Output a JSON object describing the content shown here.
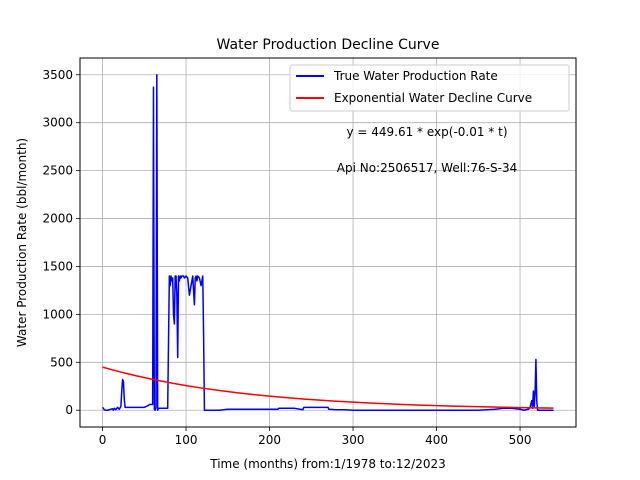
{
  "chart_data": {
    "type": "line",
    "title": "Water Production Decline Curve",
    "xlabel": "Time (months) from:1/1978 to:12/2023",
    "ylabel": "Water Production Rate (bbl/month)",
    "xlim": [
      -27,
      567
    ],
    "ylim": [
      -175,
      3675
    ],
    "xticks": [
      0,
      100,
      200,
      300,
      400,
      500
    ],
    "yticks": [
      0,
      500,
      1000,
      1500,
      2000,
      2500,
      3000,
      3500
    ],
    "grid": true,
    "legend_position": "top-right",
    "annotations": [
      "y = 449.61 * exp(-0.01 * t)",
      "Api No:2506517, Well:76-S-34"
    ],
    "series": [
      {
        "name": "True Water Production Rate",
        "color": "#0000ff",
        "x": [
          0,
          1,
          2,
          4,
          6,
          8,
          10,
          12,
          13,
          14,
          16,
          18,
          20,
          22,
          23,
          24,
          25,
          26,
          27,
          28,
          30,
          35,
          40,
          45,
          50,
          55,
          56,
          58,
          60,
          61,
          62,
          63,
          64,
          65,
          66,
          67,
          68,
          69,
          70,
          72,
          75,
          78,
          80,
          81,
          82,
          83,
          84,
          85,
          86,
          87,
          88,
          89,
          90,
          91,
          92,
          93,
          94,
          95,
          96,
          97,
          98,
          100,
          102,
          104,
          106,
          108,
          110,
          111,
          112,
          113,
          114,
          116,
          118,
          120,
          121,
          122,
          123,
          124,
          125,
          126,
          128,
          130,
          140,
          150,
          160,
          170,
          180,
          190,
          200,
          210,
          211,
          220,
          230,
          240,
          241,
          250,
          260,
          270,
          271,
          280,
          290,
          300,
          350,
          400,
          450,
          460,
          470,
          480,
          490,
          500,
          505,
          510,
          512,
          514,
          515,
          516,
          517,
          518,
          519,
          520,
          521,
          522,
          523,
          524,
          525,
          530,
          535,
          540
        ],
        "values": [
          30,
          20,
          5,
          0,
          0,
          5,
          10,
          15,
          0,
          20,
          5,
          30,
          10,
          40,
          200,
          320,
          300,
          120,
          30,
          30,
          30,
          30,
          30,
          30,
          30,
          50,
          60,
          60,
          60,
          3370,
          10,
          0,
          30,
          3500,
          0,
          20,
          20,
          20,
          20,
          20,
          20,
          20,
          1400,
          1300,
          1400,
          1350,
          1380,
          1000,
          900,
          1400,
          1400,
          1200,
          550,
          1400,
          1350,
          1400,
          1380,
          1400,
          1400,
          1400,
          1380,
          1400,
          1380,
          1200,
          1300,
          1400,
          1100,
          1380,
          1400,
          1350,
          1400,
          1380,
          1300,
          1400,
          800,
          0,
          0,
          0,
          0,
          0,
          0,
          0,
          0,
          10,
          10,
          10,
          10,
          10,
          10,
          10,
          20,
          20,
          20,
          5,
          30,
          30,
          30,
          30,
          10,
          5,
          5,
          0,
          0,
          0,
          0,
          5,
          10,
          20,
          20,
          10,
          0,
          10,
          30,
          100,
          20,
          200,
          40,
          180,
          530,
          100,
          0,
          0,
          0,
          0,
          0,
          0,
          0,
          0
        ]
      },
      {
        "name": "Exponential Water Decline Curve",
        "color": "#ff0000",
        "x": [
          0,
          20,
          40,
          60,
          80,
          100,
          120,
          140,
          160,
          180,
          200,
          220,
          240,
          260,
          280,
          300,
          320,
          340,
          360,
          380,
          400,
          420,
          440,
          460,
          480,
          500,
          520,
          540
        ],
        "values": [
          449.61,
          402.1,
          359.6,
          321.6,
          287.6,
          257.2,
          230.0,
          205.7,
          184.0,
          164.5,
          147.1,
          131.6,
          117.7,
          105.3,
          94.1,
          84.2,
          75.3,
          67.3,
          60.2,
          53.8,
          48.2,
          43.1,
          38.5,
          34.5,
          30.8,
          27.6,
          24.6,
          22.0
        ]
      }
    ]
  }
}
